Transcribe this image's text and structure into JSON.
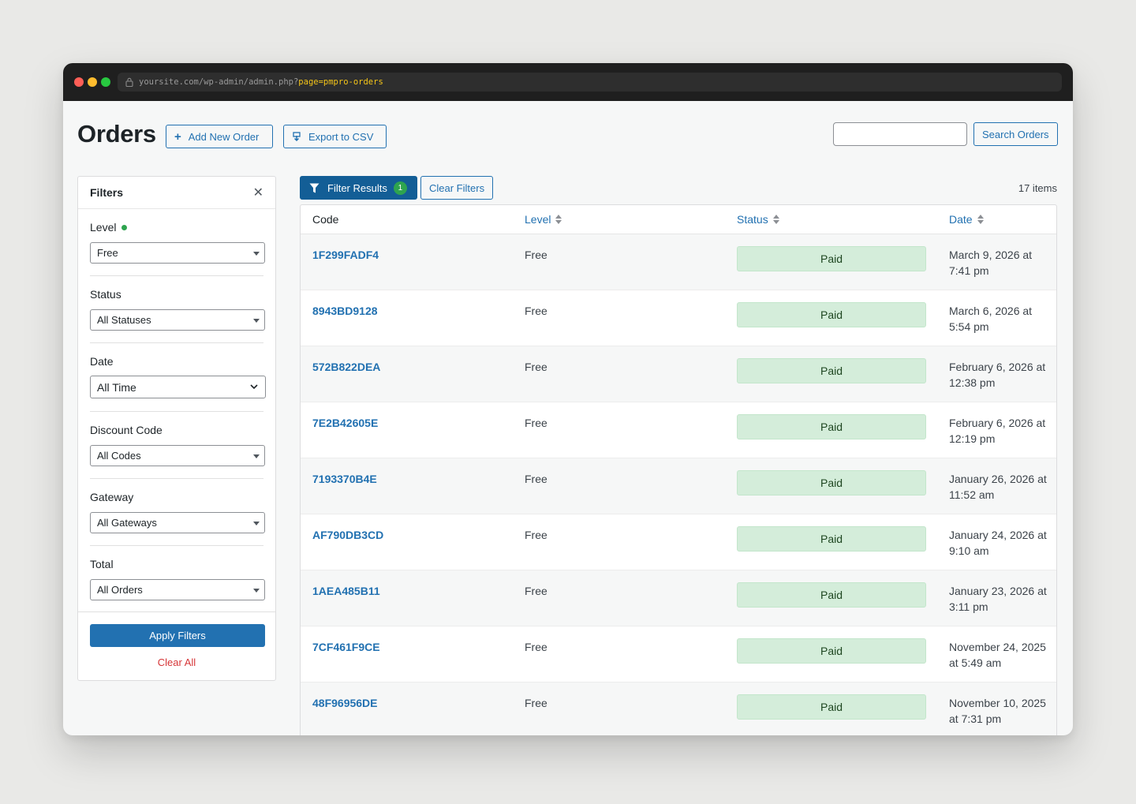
{
  "browser": {
    "url_prefix": "yoursite.com/wp-admin/admin.php?",
    "url_highlight": "page=pmpro-orders"
  },
  "header": {
    "title": "Orders",
    "add_new_label": "Add New Order",
    "export_label": "Export to CSV",
    "search_value": "",
    "search_button_label": "Search Orders"
  },
  "filters": {
    "title": "Filters",
    "level": {
      "label": "Level",
      "selected": "Free"
    },
    "status": {
      "label": "Status",
      "selected": "All Statuses"
    },
    "date": {
      "label": "Date",
      "selected": "All Time"
    },
    "discount": {
      "label": "Discount Code",
      "selected": "All Codes"
    },
    "gateway": {
      "label": "Gateway",
      "selected": "All Gateways"
    },
    "total": {
      "label": "Total",
      "selected": "All Orders"
    },
    "apply_label": "Apply Filters",
    "clear_all_label": "Clear All"
  },
  "toolbar": {
    "filter_results_label": "Filter Results",
    "filter_count": "1",
    "clear_filters_label": "Clear Filters",
    "items_count": "17 items"
  },
  "table": {
    "columns": {
      "code": "Code",
      "level": "Level",
      "status": "Status",
      "date": "Date"
    },
    "rows": [
      {
        "code": "1F299FADF4",
        "level": "Free",
        "status": "Paid",
        "date": "March 9, 2026 at 7:41 pm"
      },
      {
        "code": "8943BD9128",
        "level": "Free",
        "status": "Paid",
        "date": "March 6, 2026 at 5:54 pm"
      },
      {
        "code": "572B822DEA",
        "level": "Free",
        "status": "Paid",
        "date": "February 6, 2026 at 12:38 pm"
      },
      {
        "code": "7E2B42605E",
        "level": "Free",
        "status": "Paid",
        "date": "February 6, 2026 at 12:19 pm"
      },
      {
        "code": "7193370B4E",
        "level": "Free",
        "status": "Paid",
        "date": "January 26, 2026 at 11:52 am"
      },
      {
        "code": "AF790DB3CD",
        "level": "Free",
        "status": "Paid",
        "date": "January 24, 2026 at 9:10 am"
      },
      {
        "code": "1AEA485B11",
        "level": "Free",
        "status": "Paid",
        "date": "January 23, 2026 at 3:11 pm"
      },
      {
        "code": "7CF461F9CE",
        "level": "Free",
        "status": "Paid",
        "date": "November 24, 2025 at 5:49 am"
      },
      {
        "code": "48F96956DE",
        "level": "Free",
        "status": "Paid",
        "date": "November 10, 2025 at 7:31 pm"
      }
    ]
  },
  "colors": {
    "primary": "#2271b1",
    "primary_dark": "#135e96",
    "paid_bg": "#d4edda",
    "success": "#2ea44f",
    "danger": "#d63638"
  }
}
